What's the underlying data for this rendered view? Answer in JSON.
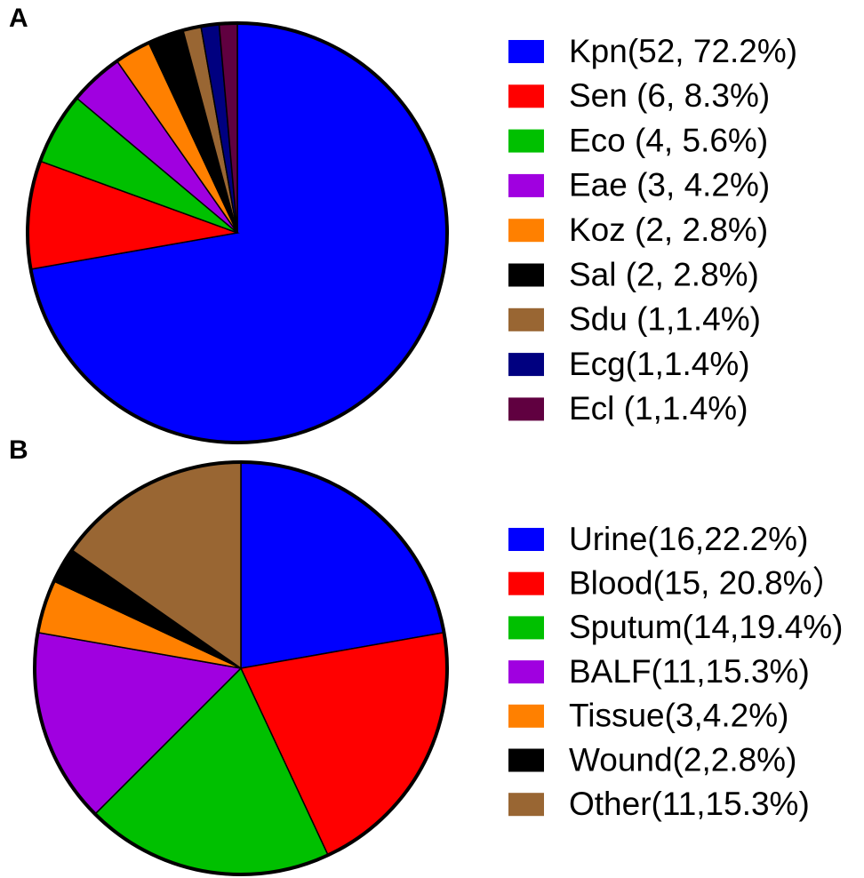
{
  "chart_data": [
    {
      "type": "pie",
      "panel_label": "A",
      "categories": [
        "Kpn(52, 72.2%)",
        "Sen (6, 8.3%)",
        "Eco (4, 5.6%)",
        "Eae (3, 4.2%)",
        "Koz (2, 2.8%)",
        "Sal (2, 2.8%)",
        "Sdu (1,1.4%)",
        "Ecg(1,1.4%)",
        "Ecl (1,1.4%)"
      ],
      "values": [
        52,
        6,
        4,
        3,
        2,
        2,
        1,
        1,
        1
      ],
      "colors": [
        "#0000ff",
        "#ff0000",
        "#00c000",
        "#a000e0",
        "#ff8000",
        "#000000",
        "#996633",
        "#000080",
        "#600040"
      ]
    },
    {
      "type": "pie",
      "panel_label": "B",
      "categories": [
        "Urine(16,22.2%)",
        "Blood(15, 20.8%）",
        "Sputum(14,19.4%)",
        "BALF(11,15.3%)",
        "Tissue(3,4.2%)",
        "Wound(2,2.8%)",
        "Other(11,15.3%)"
      ],
      "values": [
        16,
        15,
        14,
        11,
        3,
        2,
        11
      ],
      "colors": [
        "#0000ff",
        "#ff0000",
        "#00c000",
        "#a000e0",
        "#ff8000",
        "#000000",
        "#996633"
      ]
    }
  ]
}
